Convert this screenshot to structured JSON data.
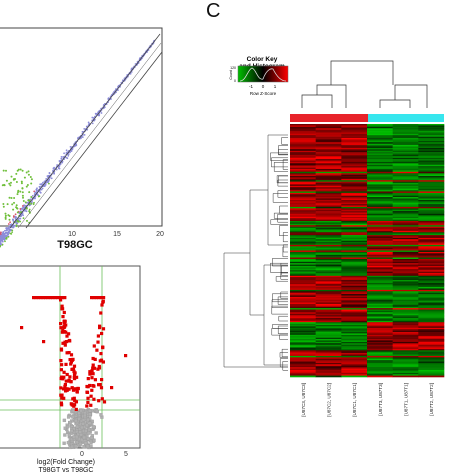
{
  "panel_c_label": "C",
  "chart_data": [
    {
      "type": "scatter",
      "panel": "top-left",
      "title": "",
      "xlabel": "T98GC",
      "ylabel": "",
      "x_ticks": [
        "10",
        "15",
        "20"
      ],
      "xlim": [
        0,
        20
      ],
      "ylim": [
        0,
        20
      ],
      "grid": false,
      "point_colors": [
        "#8c8cd8",
        "#d9536b",
        "#6fbf3a"
      ]
    },
    {
      "type": "scatter",
      "panel": "bottom-left",
      "title": "",
      "xlabel_line1": "log2(Fold Change)",
      "xlabel_line2": "T98GT vs T98GC",
      "x_ticks": [
        "0",
        "5"
      ],
      "xlim": [
        -5,
        6
      ],
      "grid": true,
      "point_colors": [
        "#e00000",
        "#b0b0b0"
      ]
    },
    {
      "type": "heatmap",
      "panel": "C",
      "color_key_title_1": "Color Key",
      "color_key_title_2": "and Histogram",
      "color_key_axis_label": "Row Z-Score",
      "color_key_ticks": [
        "-1",
        "0",
        "1"
      ],
      "color_key_count_label": "Count",
      "color_key_count_ticks": [
        "0",
        "120"
      ],
      "color_low": "#00c000",
      "color_mid": "#000000",
      "color_high": "#ff0000",
      "group_colors": [
        "#e8232a",
        "#37e6ee"
      ],
      "columns": [
        "[U87C3, U87C3]",
        "[U87C2, U87C2]",
        "[U87C1, U87C1]",
        "[U87T3, U87T3]",
        "[U87T1, U87T1]",
        "[U87T2, U87T2]"
      ],
      "column_groups": [
        0,
        0,
        0,
        1,
        1,
        1
      ]
    }
  ]
}
